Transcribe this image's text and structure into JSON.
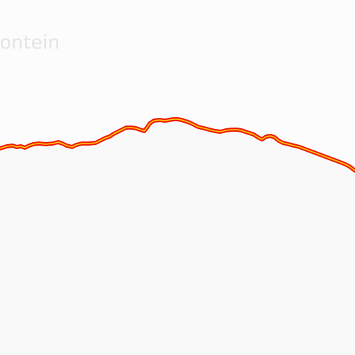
{
  "map": {
    "place_label": "fontein",
    "colors": {
      "background_outside": "#fcfcfc",
      "region_fill": "#f9f9f9",
      "boundary_outer": "#ee1c0a",
      "boundary_inner": "#ffd200",
      "label": "#e4e4e4"
    }
  }
}
